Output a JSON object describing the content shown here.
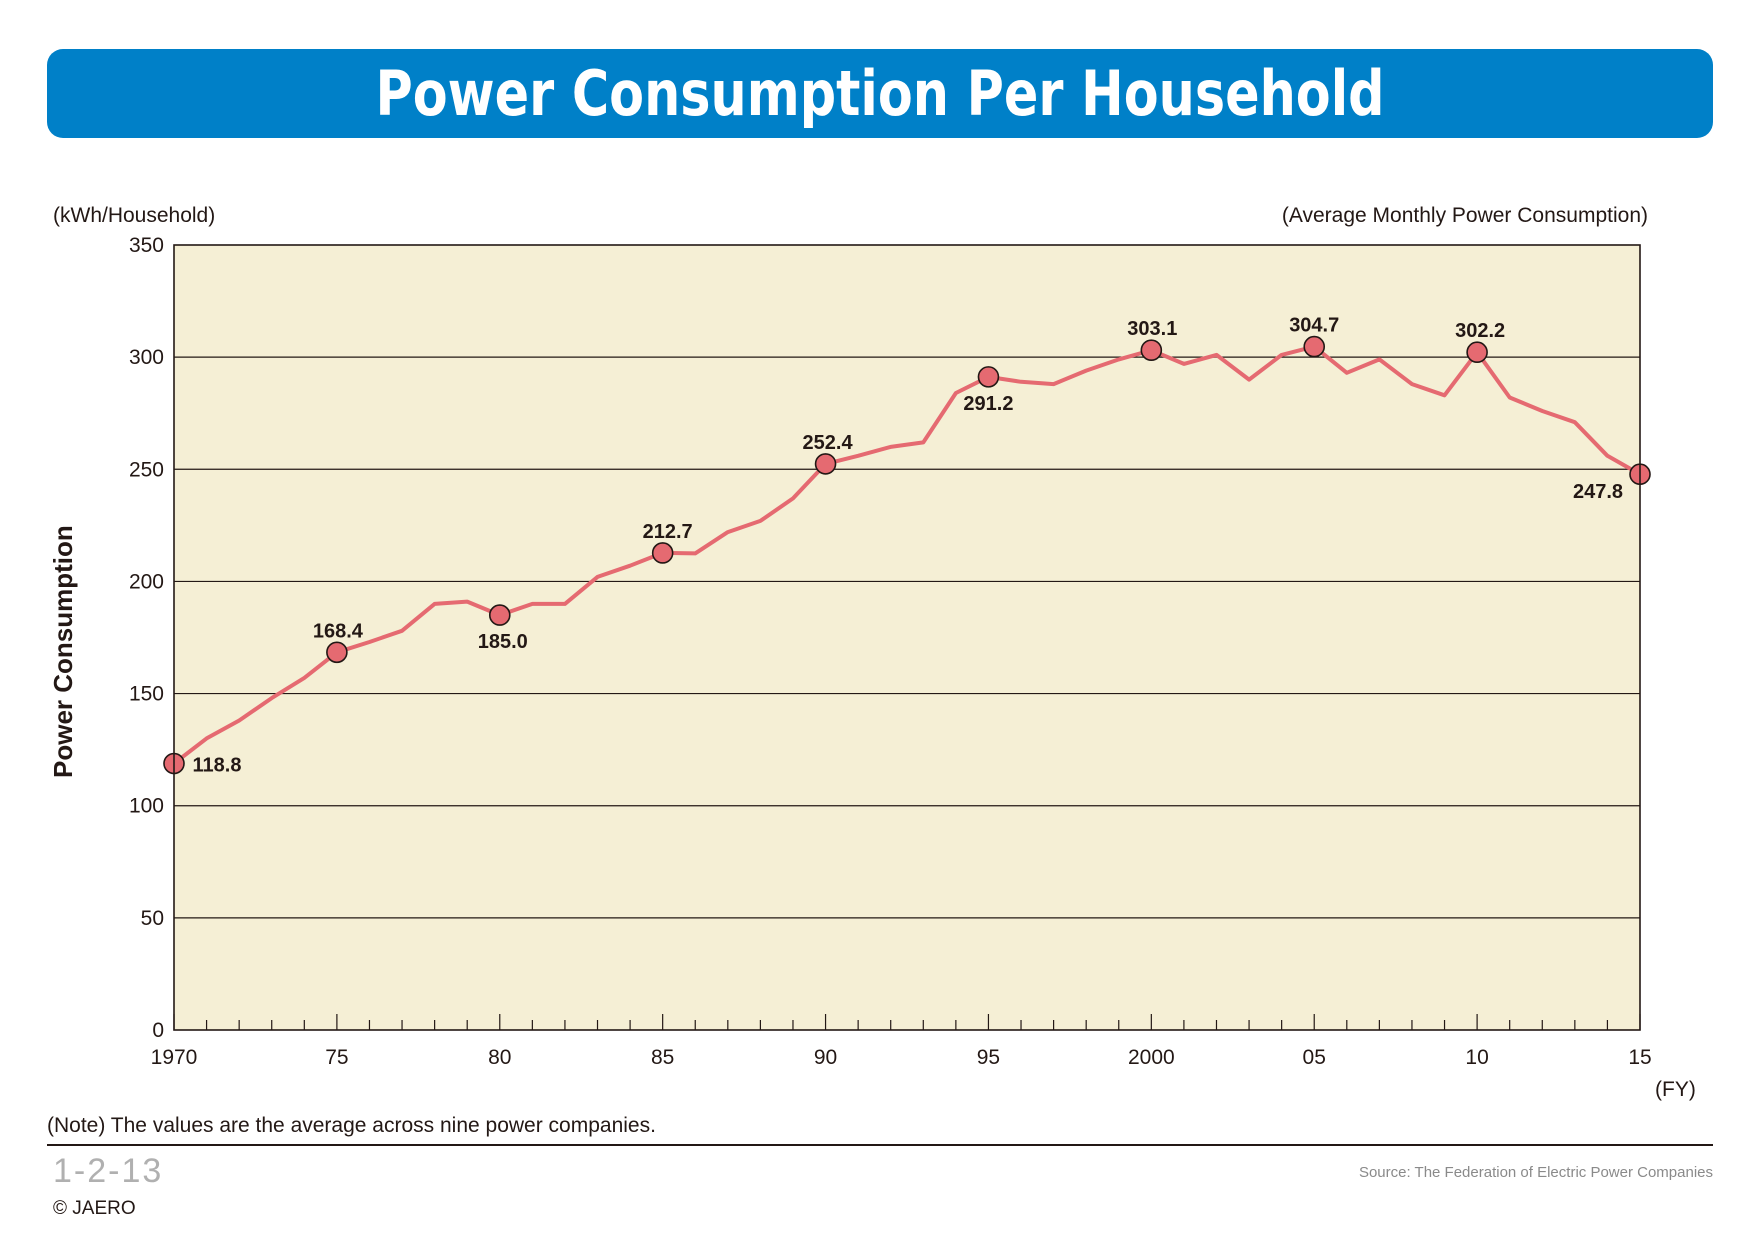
{
  "title": "Power Consumption Per Household",
  "unit_label": "(kWh/Household)",
  "subtitle": "(Average Monthly Power Consumption)",
  "ylabel": "Power Consumption",
  "xlabel_unit": "(FY)",
  "note": "(Note) The values are the average across nine power companies.",
  "figure_number": "1-2-13",
  "source": "Source: The Federation of Electric Power Companies",
  "copyright": "© JAERO",
  "colors": {
    "banner": "#0080c8",
    "plot_bg": "#f5efd5",
    "line": "#e56a71",
    "marker": "#e56a71"
  },
  "chart_data": {
    "type": "line",
    "title": "Power Consumption Per Household",
    "ylabel": "Power Consumption",
    "xlim": [
      1970,
      2015
    ],
    "ylim": [
      0,
      350
    ],
    "yticks": [
      0,
      50,
      100,
      150,
      200,
      250,
      300,
      350
    ],
    "xticks": [
      {
        "value": 1970,
        "label": "1970"
      },
      {
        "value": 1975,
        "label": "75"
      },
      {
        "value": 1980,
        "label": "80"
      },
      {
        "value": 1985,
        "label": "85"
      },
      {
        "value": 1990,
        "label": "90"
      },
      {
        "value": 1995,
        "label": "95"
      },
      {
        "value": 2000,
        "label": "2000"
      },
      {
        "value": 2005,
        "label": "05"
      },
      {
        "value": 2010,
        "label": "10"
      },
      {
        "value": 2015,
        "label": "15"
      }
    ],
    "grid": "horizontal",
    "x": [
      1970,
      1971,
      1972,
      1973,
      1974,
      1975,
      1976,
      1977,
      1978,
      1979,
      1980,
      1981,
      1982,
      1983,
      1984,
      1985,
      1986,
      1987,
      1988,
      1989,
      1990,
      1991,
      1992,
      1993,
      1994,
      1995,
      1996,
      1997,
      1998,
      1999,
      2000,
      2001,
      2002,
      2003,
      2004,
      2005,
      2006,
      2007,
      2008,
      2009,
      2010,
      2011,
      2012,
      2013,
      2014,
      2015
    ],
    "values": [
      118.8,
      130,
      138,
      148,
      157,
      168.4,
      173,
      178,
      190,
      191,
      185.0,
      190,
      190,
      202,
      207,
      212.7,
      212.5,
      222,
      227,
      237,
      252.4,
      256,
      260,
      262,
      284,
      291.2,
      289,
      288,
      294,
      299,
      303.1,
      297,
      301,
      290,
      301,
      304.7,
      293,
      299,
      288,
      283,
      302.2,
      282,
      276,
      271,
      256,
      247.8
    ],
    "labeled_points": [
      {
        "x": 1970,
        "y": 118.8,
        "label": "118.8"
      },
      {
        "x": 1975,
        "y": 168.4,
        "label": "168.4"
      },
      {
        "x": 1980,
        "y": 185.0,
        "label": "185.0"
      },
      {
        "x": 1985,
        "y": 212.7,
        "label": "212.7"
      },
      {
        "x": 1990,
        "y": 252.4,
        "label": "252.4"
      },
      {
        "x": 1995,
        "y": 291.2,
        "label": "291.2"
      },
      {
        "x": 2000,
        "y": 303.1,
        "label": "303.1"
      },
      {
        "x": 2005,
        "y": 304.7,
        "label": "304.7"
      },
      {
        "x": 2010,
        "y": 302.2,
        "label": "302.2"
      },
      {
        "x": 2015,
        "y": 247.8,
        "label": "247.8"
      }
    ]
  }
}
